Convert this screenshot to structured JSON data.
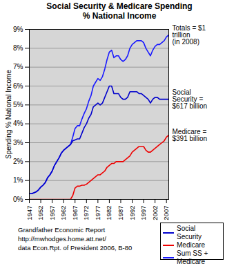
{
  "chart_data": {
    "type": "line",
    "title": "Social Security & Medicare Spending",
    "subtitle": "% National Income",
    "y_label": "Spending % National Income",
    "caption": [
      "Grandfather Economic Report",
      "http://mwhodges.home.att.net/",
      "data Econ.Rpt. of President 2006, B-80"
    ],
    "x": [
      1947,
      1948,
      1949,
      1950,
      1951,
      1952,
      1953,
      1954,
      1955,
      1956,
      1957,
      1958,
      1959,
      1960,
      1961,
      1962,
      1963,
      1964,
      1965,
      1966,
      1967,
      1968,
      1969,
      1970,
      1971,
      1972,
      1973,
      1974,
      1975,
      1976,
      1977,
      1978,
      1979,
      1980,
      1981,
      1982,
      1983,
      1984,
      1985,
      1986,
      1987,
      1988,
      1989,
      1990,
      1991,
      1992,
      1993,
      1994,
      1995,
      1996,
      1997,
      1998,
      1999,
      2000,
      2001,
      2002,
      2003,
      2004,
      2005,
      2006,
      2007,
      2008
    ],
    "series": [
      {
        "name": "Social Security",
        "color": "#0000cc",
        "annotation": "Social\nSecurity =\n$617 billion",
        "values": [
          0.3,
          0.3,
          0.35,
          0.4,
          0.5,
          0.65,
          0.75,
          0.9,
          1.15,
          1.3,
          1.5,
          1.8,
          2.0,
          2.2,
          2.45,
          2.6,
          2.7,
          2.8,
          2.9,
          3.1,
          3.15,
          3.2,
          3.2,
          3.5,
          3.8,
          4.0,
          4.3,
          4.5,
          4.9,
          5.0,
          5.1,
          5.0,
          5.1,
          5.4,
          5.7,
          6.0,
          6.0,
          5.6,
          5.6,
          5.6,
          5.4,
          5.3,
          5.3,
          5.4,
          5.7,
          5.7,
          5.7,
          5.7,
          5.6,
          5.6,
          5.5,
          5.4,
          5.3,
          5.1,
          5.3,
          5.4,
          5.4,
          5.3,
          5.3,
          5.3,
          5.3,
          5.3
        ]
      },
      {
        "name": "Medicare",
        "color": "#ee0000",
        "annotation": "Medicare =\n$391 billion",
        "values": [
          0,
          0,
          0,
          0,
          0,
          0,
          0,
          0,
          0,
          0,
          0,
          0,
          0,
          0,
          0,
          0,
          0,
          0,
          0,
          0.2,
          0.6,
          0.7,
          0.7,
          0.75,
          0.75,
          0.8,
          0.9,
          1.0,
          1.1,
          1.2,
          1.3,
          1.3,
          1.4,
          1.5,
          1.7,
          1.8,
          1.9,
          1.9,
          2.0,
          2.0,
          2.0,
          2.0,
          2.1,
          2.2,
          2.3,
          2.5,
          2.6,
          2.7,
          2.8,
          2.8,
          2.8,
          2.6,
          2.5,
          2.5,
          2.6,
          2.7,
          2.8,
          2.9,
          3.0,
          3.1,
          3.3,
          3.4
        ]
      },
      {
        "name": "Sum SS + Medicare",
        "color": "#1a1aff",
        "annotation": "Totals = $1\ntrillion\n(in 2008)",
        "values": [
          0.3,
          0.3,
          0.35,
          0.4,
          0.5,
          0.65,
          0.75,
          0.9,
          1.15,
          1.3,
          1.5,
          1.8,
          2.0,
          2.2,
          2.45,
          2.6,
          2.7,
          2.8,
          2.9,
          3.3,
          3.75,
          3.9,
          3.9,
          4.25,
          4.55,
          4.8,
          5.2,
          5.5,
          6.0,
          6.2,
          6.4,
          6.3,
          6.5,
          6.9,
          7.4,
          7.8,
          7.9,
          7.5,
          7.6,
          7.6,
          7.4,
          7.3,
          7.4,
          7.6,
          8.0,
          8.2,
          8.3,
          8.4,
          8.4,
          8.4,
          8.3,
          8.0,
          7.8,
          7.6,
          7.9,
          8.1,
          8.2,
          8.2,
          8.3,
          8.4,
          8.6,
          8.7
        ]
      }
    ],
    "xlim": [
      1947,
      2008
    ],
    "xticks": [
      1947,
      1952,
      1957,
      1962,
      1967,
      1972,
      1977,
      1982,
      1987,
      1992,
      1997,
      2002,
      2007
    ],
    "ylim": [
      0,
      9
    ],
    "yticks": [
      {
        "value": 0,
        "label": "0%"
      },
      {
        "value": 1,
        "label": "1%"
      },
      {
        "value": 2,
        "label": "2%"
      },
      {
        "value": 3,
        "label": "3%"
      },
      {
        "value": 4,
        "label": "4%"
      },
      {
        "value": 5,
        "label": "5%"
      },
      {
        "value": 6,
        "label": "6%"
      },
      {
        "value": 7,
        "label": "7%"
      },
      {
        "value": 8,
        "label": "8%"
      },
      {
        "value": 9,
        "label": "9%"
      }
    ],
    "grid": true,
    "legend": "right"
  }
}
